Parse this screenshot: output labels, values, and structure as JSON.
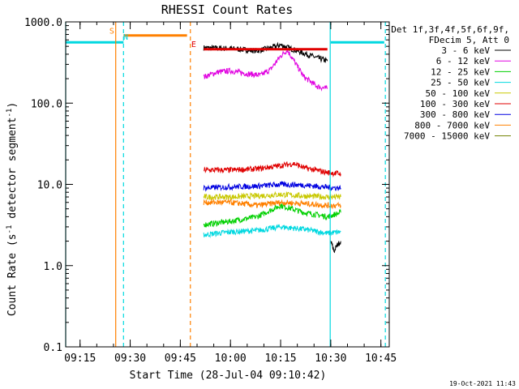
{
  "chart_data": {
    "type": "line",
    "title": "RHESSI Count Rates",
    "xlabel": "Start Time (28-Jul-04 09:10:42)",
    "ylabel_parts": [
      "Count Rate (s",
      "-1",
      " detector segment",
      "-1",
      ")"
    ],
    "yscale": "log",
    "ylim": [
      0.1,
      1000.0
    ],
    "xlim": [
      "09:10:42",
      "10:47:30"
    ],
    "x_ticks": [
      "09:15",
      "09:30",
      "09:45",
      "10:00",
      "10:15",
      "10:30",
      "10:45"
    ],
    "y_ticks": [
      "0.1",
      "1.0",
      "10.0",
      "100.0",
      "1000.0"
    ],
    "legend": {
      "position": "right",
      "header": [
        "Det 1f,3f,4f,5f,6f,9f,",
        "FDecim 5, Att 0"
      ],
      "entries": [
        {
          "label": "3 - 6 keV",
          "color": "#000000"
        },
        {
          "label": "6 - 12 keV",
          "color": "#e000e0"
        },
        {
          "label": "12 - 25 keV",
          "color": "#00d000"
        },
        {
          "label": "25 - 50 keV",
          "color": "#00d8e0"
        },
        {
          "label": "50 - 100 keV",
          "color": "#c8c800"
        },
        {
          "label": "100 - 300 keV",
          "color": "#e00000"
        },
        {
          "label": "300 - 800 keV",
          "color": "#0000e0"
        },
        {
          "label": "800 - 7000 keV",
          "color": "#ff8000"
        },
        {
          "label": "7000 - 15000 keV",
          "color": "#708000"
        }
      ]
    },
    "series": [
      {
        "name": "3 - 6 keV",
        "color": "#000000",
        "x": [
          "09:52",
          "10:00",
          "10:08",
          "10:12",
          "10:15",
          "10:18",
          "10:22",
          "10:26",
          "10:29"
        ],
        "values": [
          480,
          470,
          440,
          480,
          520,
          470,
          410,
          360,
          330
        ]
      },
      {
        "name": "3 - 6 keV (after)",
        "color": "#000000",
        "x": [
          "10:30",
          "10:31",
          "10:32",
          "10:33"
        ],
        "values": [
          2.0,
          1.5,
          1.8,
          2.0
        ]
      },
      {
        "name": "6 - 12 keV",
        "color": "#e000e0",
        "x": [
          "09:52",
          "09:56",
          "10:00",
          "10:05",
          "10:09",
          "10:12",
          "10:15",
          "10:17",
          "10:19",
          "10:22",
          "10:26",
          "10:29"
        ],
        "values": [
          210,
          240,
          250,
          230,
          220,
          260,
          380,
          450,
          330,
          210,
          160,
          150
        ]
      },
      {
        "name": "12 - 25 keV",
        "color": "#00d000",
        "x": [
          "09:52",
          "10:00",
          "10:08",
          "10:15",
          "10:22",
          "10:29",
          "10:33"
        ],
        "values": [
          3.2,
          3.5,
          4.0,
          5.5,
          4.5,
          4.0,
          4.5
        ]
      },
      {
        "name": "25 - 50 keV",
        "color": "#00d8e0",
        "x": [
          "09:52",
          "10:00",
          "10:08",
          "10:15",
          "10:22",
          "10:29",
          "10:33"
        ],
        "values": [
          2.4,
          2.6,
          2.7,
          3.0,
          2.8,
          2.5,
          2.6
        ]
      },
      {
        "name": "50 - 100 keV",
        "color": "#c8c800",
        "x": [
          "09:52",
          "10:00",
          "10:08",
          "10:15",
          "10:22",
          "10:29",
          "10:33"
        ],
        "values": [
          7.0,
          7.0,
          7.2,
          7.5,
          7.2,
          7.0,
          7.0
        ]
      },
      {
        "name": "100 - 300 keV",
        "color": "#e00000",
        "x": [
          "09:52",
          "10:00",
          "10:08",
          "10:15",
          "10:19",
          "10:22",
          "10:29",
          "10:33"
        ],
        "values": [
          15,
          15,
          15.5,
          17,
          18,
          16,
          14,
          13.5
        ]
      },
      {
        "name": "300 - 800 keV",
        "color": "#0000e0",
        "x": [
          "09:52",
          "10:00",
          "10:08",
          "10:15",
          "10:22",
          "10:29",
          "10:33"
        ],
        "values": [
          9.0,
          9.3,
          9.5,
          10.0,
          9.8,
          9.2,
          9.0
        ]
      },
      {
        "name": "800 - 7000 keV",
        "color": "#ff8000",
        "x": [
          "09:52",
          "10:00",
          "10:08",
          "10:15",
          "10:22",
          "10:29",
          "10:33"
        ],
        "values": [
          6.0,
          6.0,
          5.5,
          6.0,
          5.8,
          5.5,
          5.5
        ]
      }
    ],
    "overlay_lines": [
      {
        "color": "#00d8e0",
        "x": [
          "09:10:42",
          "09:28"
        ],
        "values": [
          560,
          560
        ]
      },
      {
        "color": "#ff8000",
        "x": [
          "09:28",
          "09:47"
        ],
        "values": [
          680,
          680
        ]
      },
      {
        "color": "#e00000",
        "x": [
          "09:52",
          "10:29"
        ],
        "values": [
          460,
          460
        ]
      },
      {
        "color": "#00d8e0",
        "x": [
          "10:30",
          "10:46"
        ],
        "values": [
          560,
          560
        ]
      }
    ],
    "vertical_markers": [
      {
        "x": "09:10:42",
        "color": "#00d8e0",
        "style": "solid"
      },
      {
        "x": "09:25:40",
        "color": "#ff8000",
        "style": "solid"
      },
      {
        "x": "09:28:00",
        "color": "#00d8e0",
        "style": "dashed"
      },
      {
        "x": "09:48:00",
        "color": "#ff8000",
        "style": "dashed"
      },
      {
        "x": "10:29:50",
        "color": "#00d8e0",
        "style": "solid"
      },
      {
        "x": "10:46:20",
        "color": "#00d8e0",
        "style": "dashed"
      }
    ],
    "markers": [
      {
        "text": "S",
        "x": "09:24:30",
        "value": 720,
        "color": "#ff8000"
      },
      {
        "text": "N",
        "x": "09:28:40",
        "value": 600,
        "color": "#00d8e0"
      },
      {
        "text": "E",
        "x": "09:49:00",
        "value": 490,
        "color": "#e00000"
      }
    ]
  },
  "footer": {
    "timestamp": "19-Oct-2021 11:43"
  }
}
